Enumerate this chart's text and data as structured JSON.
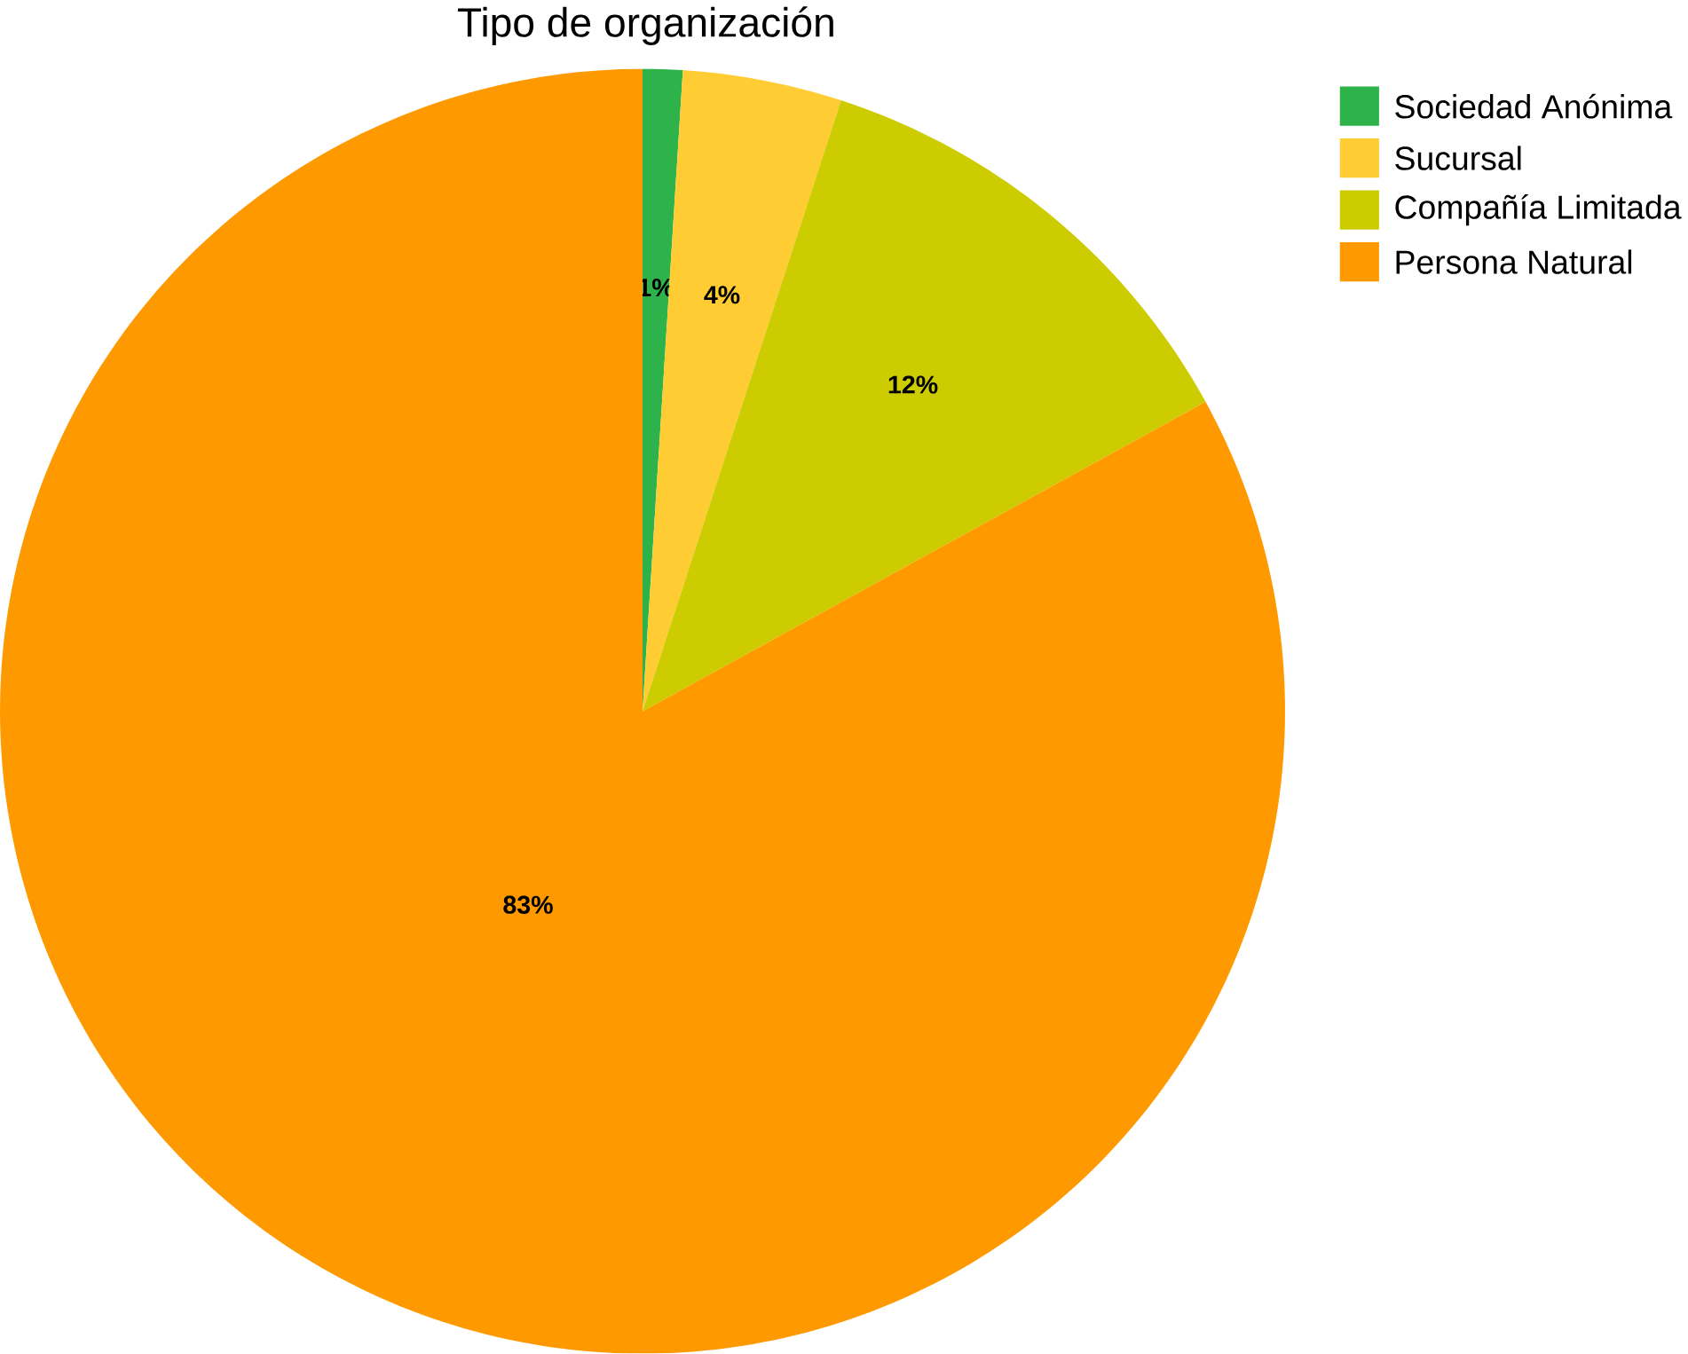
{
  "chart_data": {
    "type": "pie",
    "title": "Tipo de organización",
    "categories": [
      "Sociedad Anónima",
      "Sucursal",
      "Compañía Limitada",
      "Persona Natural"
    ],
    "values": [
      1,
      4,
      12,
      83
    ],
    "colors": [
      "#2db34a",
      "#ffcc33",
      "#cccc00",
      "#ff9900"
    ],
    "value_labels": [
      "1%",
      "4%",
      "12%",
      "83%"
    ],
    "legend": "top right"
  }
}
